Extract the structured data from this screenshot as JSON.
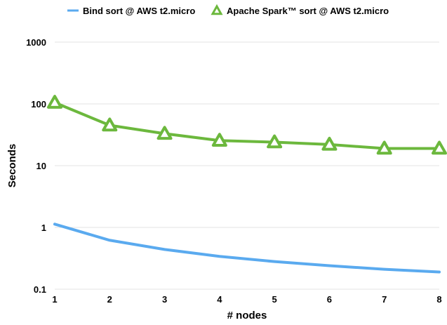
{
  "chart_data": {
    "type": "line",
    "title": "",
    "xlabel": "# nodes",
    "ylabel": "Seconds",
    "yscale": "log",
    "ylim": [
      0.1,
      1000
    ],
    "xlim": [
      1,
      8
    ],
    "grid": true,
    "legend_position": "top",
    "x": [
      1,
      2,
      3,
      4,
      5,
      6,
      7,
      8
    ],
    "x_tick_labels": [
      "1",
      "2",
      "3",
      "4",
      "5",
      "6",
      "7",
      "8"
    ],
    "y_ticks": [
      0.1,
      1,
      10,
      100,
      1000
    ],
    "y_tick_labels": [
      "0.1",
      "1",
      "10",
      "100",
      "1000"
    ],
    "series": [
      {
        "name": "Bind sort @ AWS t2.micro",
        "color": "#5aaaef",
        "marker": "none",
        "values": [
          1.13,
          0.62,
          0.44,
          0.34,
          0.28,
          0.24,
          0.21,
          0.19
        ]
      },
      {
        "name": "Apache Spark™ sort @ AWS t2.micro",
        "color": "#6cb83d",
        "marker": "triangle-open",
        "values": [
          105,
          45,
          33,
          25.5,
          24,
          22,
          19,
          19
        ]
      }
    ]
  }
}
